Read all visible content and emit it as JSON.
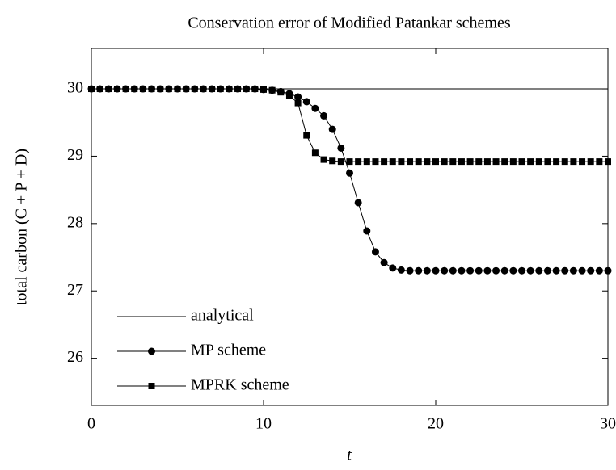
{
  "chart_data": {
    "type": "line",
    "title": "Conservation error of Modified Patankar schemes",
    "x_label": "t",
    "y_label": "total carbon (C + P + D)",
    "xlim": [
      0,
      30
    ],
    "xticks": [
      0,
      10,
      20,
      30
    ],
    "ylim": [
      25.3,
      30.6
    ],
    "yticks": [
      26,
      27,
      28,
      29,
      30
    ],
    "legend": "lower left",
    "series": [
      {
        "name": "analytical",
        "color": "#000000",
        "marker": "none",
        "x": [
          0,
          30
        ],
        "values": [
          30,
          30
        ]
      },
      {
        "name": "MP scheme",
        "color": "#000000",
        "marker": "circle",
        "x": [
          0,
          0.5,
          1,
          1.5,
          2,
          2.5,
          3,
          3.5,
          4,
          4.5,
          5,
          5.5,
          6,
          6.5,
          7,
          7.5,
          8,
          8.5,
          9,
          9.5,
          10,
          10.5,
          11,
          11.5,
          12,
          12.5,
          13,
          13.5,
          14,
          14.5,
          15,
          15.5,
          16,
          16.5,
          17,
          17.5,
          18,
          18.5,
          19,
          19.5,
          20,
          20.5,
          21,
          21.5,
          22,
          22.5,
          23,
          23.5,
          24,
          24.5,
          25,
          25.5,
          26,
          26.5,
          27,
          27.5,
          28,
          28.5,
          29,
          29.5,
          30
        ],
        "values": [
          30,
          30,
          30,
          30,
          30,
          30,
          30,
          30,
          30,
          30,
          30,
          30,
          30,
          30,
          30,
          30,
          30,
          30,
          30,
          30,
          29.99,
          29.98,
          29.96,
          29.93,
          29.88,
          29.81,
          29.71,
          29.6,
          29.4,
          29.12,
          28.75,
          28.31,
          27.89,
          27.58,
          27.42,
          27.34,
          27.31,
          27.3,
          27.3,
          27.3,
          27.3,
          27.3,
          27.3,
          27.3,
          27.3,
          27.3,
          27.3,
          27.3,
          27.3,
          27.3,
          27.3,
          27.3,
          27.3,
          27.3,
          27.3,
          27.3,
          27.3,
          27.3,
          27.3,
          27.3,
          27.3
        ]
      },
      {
        "name": "MPRK scheme",
        "color": "#000000",
        "marker": "square",
        "x": [
          0,
          0.5,
          1,
          1.5,
          2,
          2.5,
          3,
          3.5,
          4,
          4.5,
          5,
          5.5,
          6,
          6.5,
          7,
          7.5,
          8,
          8.5,
          9,
          9.5,
          10,
          10.5,
          11,
          11.5,
          12,
          12.5,
          13,
          13.5,
          14,
          14.5,
          15,
          15.5,
          16,
          16.5,
          17,
          17.5,
          18,
          18.5,
          19,
          19.5,
          20,
          20.5,
          21,
          21.5,
          22,
          22.5,
          23,
          23.5,
          24,
          24.5,
          25,
          25.5,
          26,
          26.5,
          27,
          27.5,
          28,
          28.5,
          29,
          29.5,
          30
        ],
        "values": [
          30,
          30,
          30,
          30,
          30,
          30,
          30,
          30,
          30,
          30,
          30,
          30,
          30,
          30,
          30,
          30,
          30,
          30,
          30,
          30,
          29.99,
          29.98,
          29.95,
          29.9,
          29.79,
          29.31,
          29.05,
          28.95,
          28.93,
          28.92,
          28.92,
          28.92,
          28.92,
          28.92,
          28.92,
          28.92,
          28.92,
          28.92,
          28.92,
          28.92,
          28.92,
          28.92,
          28.92,
          28.92,
          28.92,
          28.92,
          28.92,
          28.92,
          28.92,
          28.92,
          28.92,
          28.92,
          28.92,
          28.92,
          28.92,
          28.92,
          28.92,
          28.92,
          28.92,
          28.92,
          28.92
        ]
      }
    ]
  }
}
